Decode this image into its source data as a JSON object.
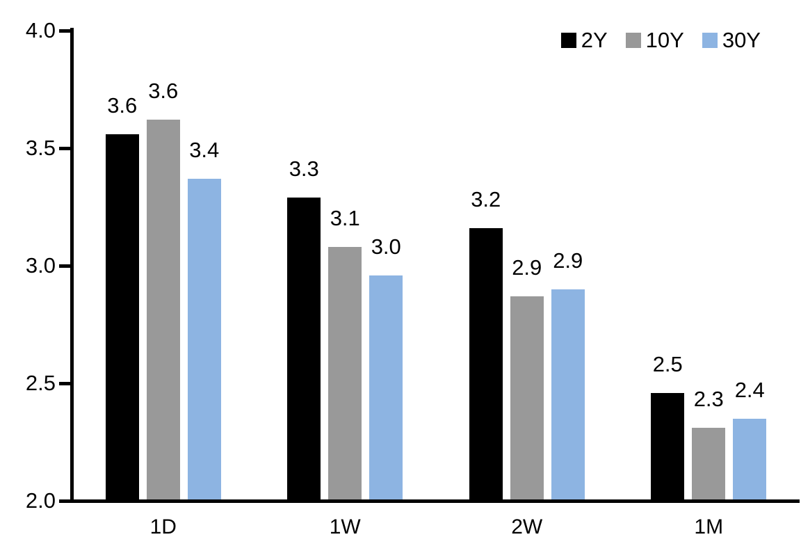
{
  "chart_data": {
    "type": "bar",
    "title": "",
    "xlabel": "",
    "ylabel": "",
    "background_color": "#FFFFFF",
    "axis_color": "#000000",
    "text_color": "#000000",
    "grid": false,
    "legend_position": "top-right",
    "ylim": [
      2.0,
      4.0
    ],
    "y_ticks": [
      "4.0",
      "3.5",
      "3.0",
      "2.5",
      "2.0"
    ],
    "categories": [
      "1D",
      "1W",
      "2W",
      "1M"
    ],
    "series": [
      {
        "name": "2Y",
        "color": "#000000",
        "values": [
          3.56,
          3.29,
          3.16,
          2.46
        ],
        "labels": [
          "3.6",
          "3.3",
          "3.2",
          "2.5"
        ]
      },
      {
        "name": "10Y",
        "color": "#999999",
        "values": [
          3.62,
          3.08,
          2.87,
          2.31
        ],
        "labels": [
          "3.6",
          "3.1",
          "2.9",
          "2.3"
        ]
      },
      {
        "name": "30Y",
        "color": "#8DB4E2",
        "values": [
          3.37,
          2.96,
          2.9,
          2.35
        ],
        "labels": [
          "3.4",
          "3.0",
          "2.9",
          "2.4"
        ]
      }
    ]
  }
}
